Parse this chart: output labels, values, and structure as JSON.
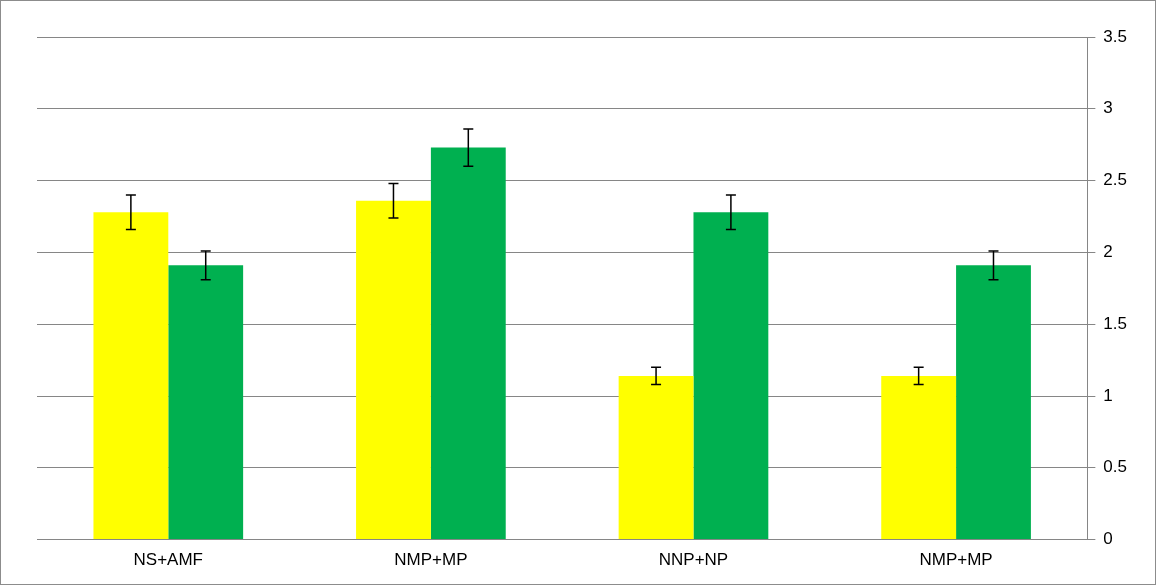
{
  "chart_data": {
    "type": "bar",
    "categories": [
      "NS+AMF",
      "NMP+MP",
      "NNP+NP",
      "NMP+MP"
    ],
    "series": [
      {
        "color": "#ffff00",
        "values": [
          2.28,
          2.36,
          1.14,
          1.14
        ],
        "errors": [
          0.12,
          0.12,
          0.06,
          0.06
        ]
      },
      {
        "color": "#00b050",
        "values": [
          1.91,
          2.73,
          2.28,
          1.91
        ],
        "errors": [
          0.1,
          0.13,
          0.12,
          0.1
        ]
      }
    ],
    "ylim": [
      0,
      3.5
    ],
    "yticks": [
      0,
      0.5,
      1,
      1.5,
      2,
      2.5,
      3,
      3.5
    ],
    "grid": "y",
    "legend": false
  }
}
